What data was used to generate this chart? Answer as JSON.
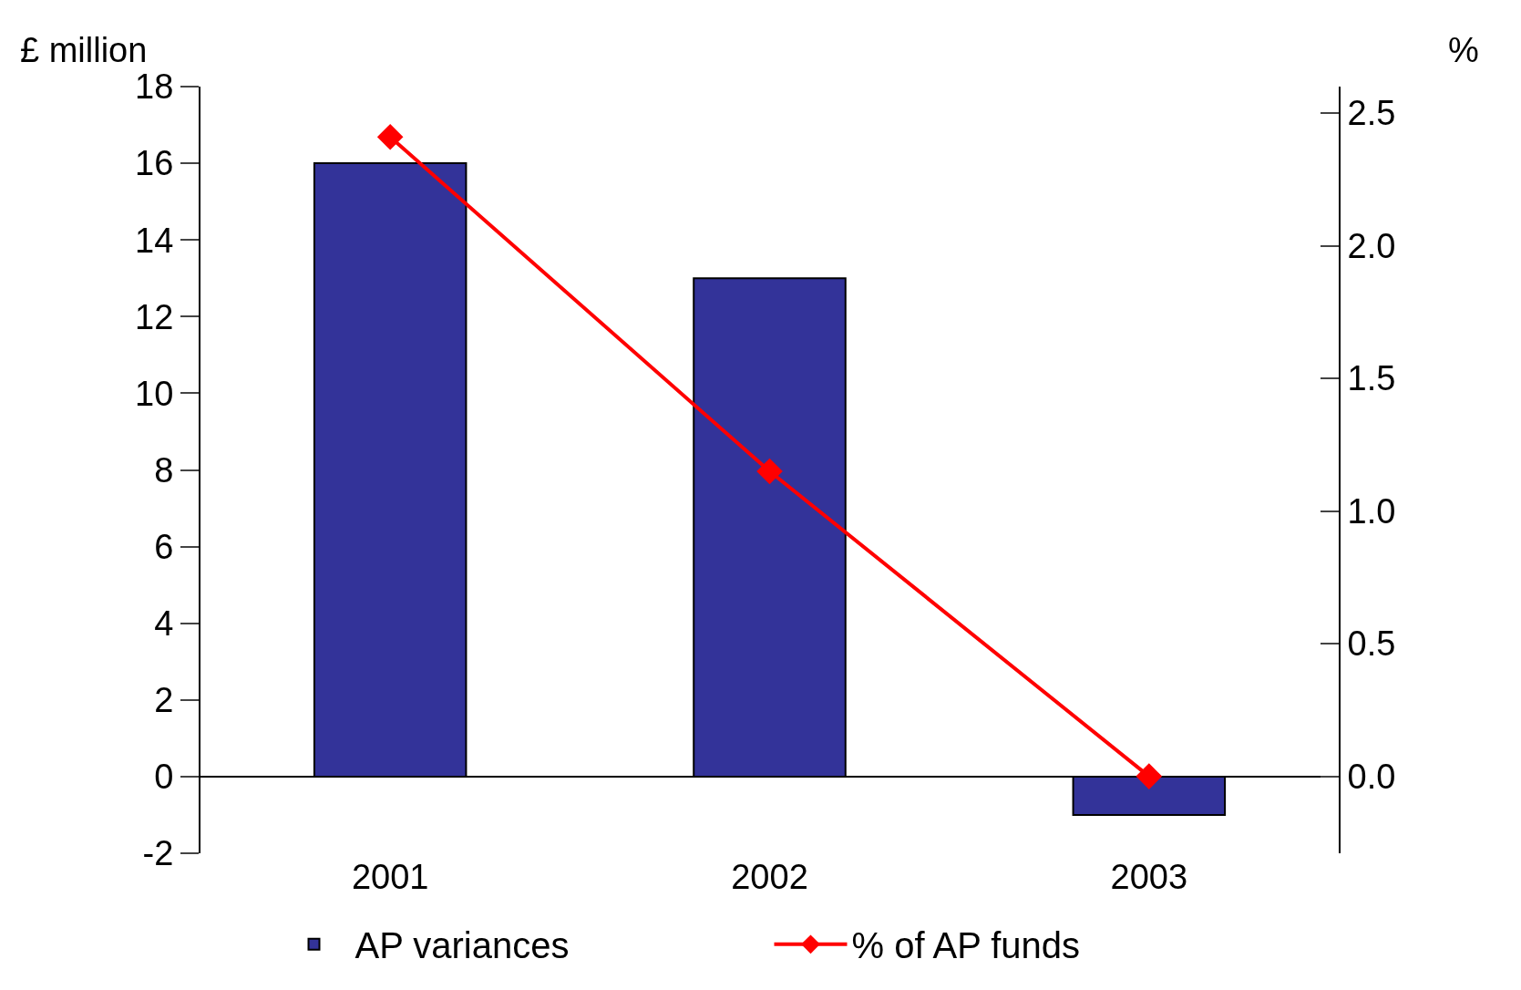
{
  "chart_data": {
    "type": "bar",
    "categories": [
      "2001",
      "2002",
      "2003"
    ],
    "ylabel": "£ million",
    "y2label": "%",
    "series": [
      {
        "name": "AP variances",
        "color": "#333399",
        "values": [
          16,
          13,
          -1
        ]
      },
      {
        "name": "% of AP funds",
        "type": "line",
        "axis": "y2",
        "color": "#ff0000",
        "values": [
          2.41,
          1.15,
          0.0
        ],
        "marker": "diamond",
        "line_style": "solid"
      }
    ],
    "ylim": [
      -2,
      18
    ],
    "yticks": [
      -2,
      0,
      2,
      4,
      6,
      8,
      10,
      12,
      14,
      16,
      18
    ],
    "y2lim": [
      -0.29,
      2.6
    ],
    "y2ticks": [
      {
        "value": 0,
        "label": "0.0"
      },
      {
        "value": 0.5,
        "label": "0.5"
      },
      {
        "value": 1,
        "label": "1.0"
      },
      {
        "value": 1.5,
        "label": "1.5"
      },
      {
        "value": 2,
        "label": "2.0"
      },
      {
        "value": 2.5,
        "label": "2.5"
      }
    ],
    "grid": false,
    "legend": "bottom"
  }
}
